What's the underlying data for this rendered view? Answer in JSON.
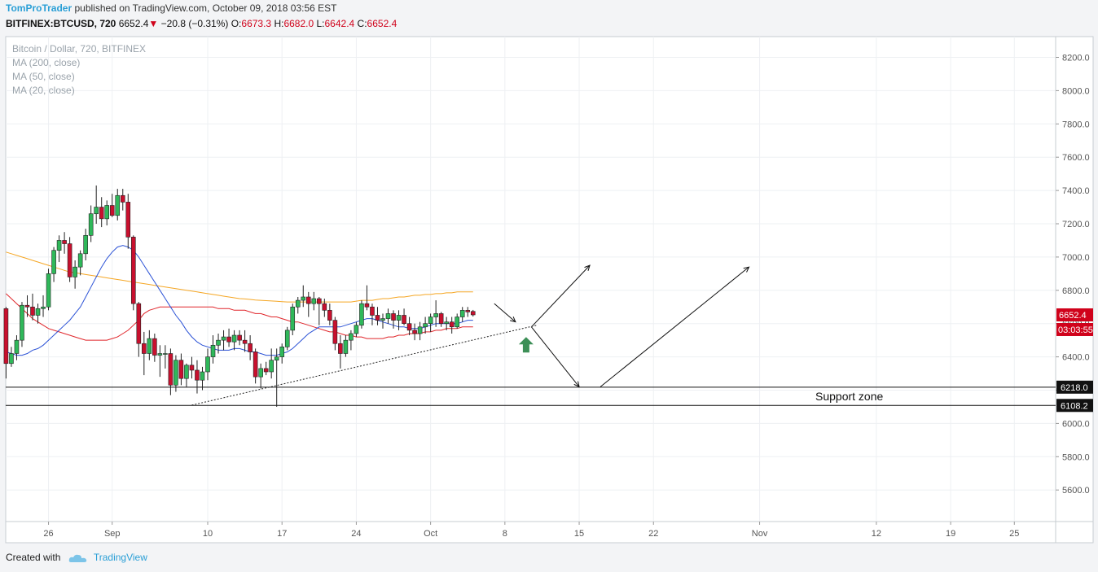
{
  "header": {
    "author": "TomProTrader",
    "published_text": "published on TradingView.com, October 09, 2018 03:56 EST",
    "symbol": "BITFINEX:BTCUSD, 720",
    "last": "6652.4",
    "change_arrow": "▼",
    "change": "−20.8 (−0.31%)",
    "o_label": "O:",
    "o_val": "6673.3",
    "h_label": "H:",
    "h_val": "6682.0",
    "l_label": "L:",
    "l_val": "6642.4",
    "c_label": "C:",
    "c_val": "6652.4"
  },
  "legend": {
    "title": "Bitcoin / Dollar, 720, BITFINEX",
    "ma200": "MA (200, close)",
    "ma50": "MA (50, close)",
    "ma20": "MA (20, close)"
  },
  "price_tags": {
    "last_price": "6652.4",
    "countdown": "03:03:55",
    "support_top": "6218.0",
    "support_bottom": "6108.2"
  },
  "annotation": {
    "support_zone": "Support zone"
  },
  "footer": {
    "created_with": "Created with",
    "brand": "TradingView"
  },
  "colors": {
    "up": "#2fb85a",
    "down": "#c8102e",
    "ma200": "#f5a623",
    "ma50": "#e0262b",
    "ma20": "#2b52d6",
    "brand": "#2a9fd6"
  },
  "chart_data": {
    "type": "candlestick",
    "title": "Bitcoin / Dollar, 720, BITFINEX",
    "interval": "720",
    "y_ticks": [
      5600,
      5800,
      6000,
      6200,
      6400,
      6600,
      6800,
      7000,
      7200,
      7400,
      7600,
      7800,
      8000,
      8200
    ],
    "ylim": [
      5420,
      8320
    ],
    "x_ticks": [
      {
        "label": "26",
        "date": "2018-08-26"
      },
      {
        "label": "Sep",
        "date": "2018-09-01"
      },
      {
        "label": "10",
        "date": "2018-09-10"
      },
      {
        "label": "17",
        "date": "2018-09-17"
      },
      {
        "label": "24",
        "date": "2018-09-24"
      },
      {
        "label": "Oct",
        "date": "2018-10-01"
      },
      {
        "label": "8",
        "date": "2018-10-08"
      },
      {
        "label": "15",
        "date": "2018-10-15"
      },
      {
        "label": "22",
        "date": "2018-10-22"
      },
      {
        "label": "Nov",
        "date": "2018-11-01"
      },
      {
        "label": "12",
        "date": "2018-11-12"
      },
      {
        "label": "19",
        "date": "2018-11-19"
      },
      {
        "label": "25",
        "date": "2018-11-25"
      }
    ],
    "candles_start": "2018-08-22 00:00",
    "candles": [
      [
        6690,
        6700,
        6270,
        6360
      ],
      [
        6360,
        6460,
        6340,
        6420
      ],
      [
        6420,
        6530,
        6380,
        6500
      ],
      [
        6500,
        6730,
        6460,
        6710
      ],
      [
        6710,
        6770,
        6640,
        6700
      ],
      [
        6700,
        6780,
        6620,
        6650
      ],
      [
        6650,
        6720,
        6600,
        6690
      ],
      [
        6690,
        6770,
        6640,
        6700
      ],
      [
        6700,
        6930,
        6680,
        6900
      ],
      [
        6900,
        7060,
        6850,
        7040
      ],
      [
        7040,
        7130,
        6970,
        7100
      ],
      [
        7100,
        7150,
        7020,
        7080
      ],
      [
        7080,
        7120,
        6850,
        6880
      ],
      [
        6880,
        6980,
        6810,
        6940
      ],
      [
        6940,
        7040,
        6890,
        7020
      ],
      [
        7020,
        7170,
        6980,
        7130
      ],
      [
        7130,
        7310,
        7090,
        7260
      ],
      [
        7260,
        7430,
        7200,
        7300
      ],
      [
        7300,
        7360,
        7180,
        7230
      ],
      [
        7230,
        7340,
        7190,
        7310
      ],
      [
        7310,
        7380,
        7240,
        7250
      ],
      [
        7250,
        7410,
        7220,
        7370
      ],
      [
        7370,
        7410,
        7280,
        7330
      ],
      [
        7330,
        7380,
        7050,
        7120
      ],
      [
        7120,
        7130,
        6680,
        6720
      ],
      [
        6720,
        6730,
        6400,
        6480
      ],
      [
        6480,
        6550,
        6290,
        6420
      ],
      [
        6420,
        6560,
        6380,
        6510
      ],
      [
        6510,
        6540,
        6370,
        6410
      ],
      [
        6410,
        6470,
        6280,
        6420
      ],
      [
        6420,
        6470,
        6330,
        6420
      ],
      [
        6420,
        6450,
        6170,
        6230
      ],
      [
        6230,
        6410,
        6190,
        6380
      ],
      [
        6380,
        6420,
        6230,
        6270
      ],
      [
        6270,
        6360,
        6220,
        6350
      ],
      [
        6350,
        6400,
        6270,
        6320
      ],
      [
        6320,
        6380,
        6180,
        6260
      ],
      [
        6260,
        6340,
        6200,
        6310
      ],
      [
        6310,
        6450,
        6260,
        6400
      ],
      [
        6400,
        6530,
        6360,
        6470
      ],
      [
        6470,
        6540,
        6420,
        6500
      ],
      [
        6500,
        6560,
        6440,
        6520
      ],
      [
        6520,
        6570,
        6460,
        6490
      ],
      [
        6490,
        6560,
        6440,
        6530
      ],
      [
        6530,
        6560,
        6470,
        6500
      ],
      [
        6500,
        6560,
        6430,
        6480
      ],
      [
        6480,
        6530,
        6380,
        6430
      ],
      [
        6430,
        6450,
        6240,
        6280
      ],
      [
        6280,
        6360,
        6210,
        6330
      ],
      [
        6330,
        6370,
        6290,
        6310
      ],
      [
        6310,
        6450,
        6270,
        6380
      ],
      [
        6380,
        6450,
        6100,
        6400
      ],
      [
        6400,
        6480,
        6360,
        6460
      ],
      [
        6460,
        6580,
        6440,
        6560
      ],
      [
        6560,
        6720,
        6530,
        6700
      ],
      [
        6700,
        6760,
        6660,
        6740
      ],
      [
        6740,
        6830,
        6700,
        6760
      ],
      [
        6760,
        6790,
        6640,
        6720
      ],
      [
        6720,
        6790,
        6680,
        6750
      ],
      [
        6750,
        6760,
        6590,
        6720
      ],
      [
        6720,
        6750,
        6640,
        6680
      ],
      [
        6680,
        6720,
        6590,
        6620
      ],
      [
        6620,
        6640,
        6440,
        6480
      ],
      [
        6480,
        6530,
        6330,
        6420
      ],
      [
        6420,
        6530,
        6400,
        6500
      ],
      [
        6500,
        6560,
        6440,
        6540
      ],
      [
        6540,
        6610,
        6520,
        6590
      ],
      [
        6590,
        6740,
        6570,
        6720
      ],
      [
        6720,
        6830,
        6680,
        6700
      ],
      [
        6700,
        6720,
        6590,
        6650
      ],
      [
        6650,
        6700,
        6590,
        6620
      ],
      [
        6620,
        6660,
        6570,
        6630
      ],
      [
        6630,
        6690,
        6600,
        6660
      ],
      [
        6660,
        6680,
        6570,
        6620
      ],
      [
        6620,
        6680,
        6560,
        6650
      ],
      [
        6650,
        6690,
        6590,
        6600
      ],
      [
        6600,
        6640,
        6530,
        6560
      ],
      [
        6560,
        6600,
        6500,
        6540
      ],
      [
        6540,
        6610,
        6500,
        6580
      ],
      [
        6580,
        6640,
        6540,
        6600
      ],
      [
        6600,
        6660,
        6550,
        6640
      ],
      [
        6640,
        6740,
        6580,
        6660
      ],
      [
        6660,
        6670,
        6580,
        6600
      ],
      [
        6600,
        6640,
        6560,
        6610
      ],
      [
        6610,
        6640,
        6540,
        6580
      ],
      [
        6580,
        6660,
        6570,
        6640
      ],
      [
        6640,
        6700,
        6610,
        6680
      ],
      [
        6680,
        6700,
        6640,
        6670
      ],
      [
        6673.3,
        6682.0,
        6642.4,
        6652.4
      ]
    ],
    "ma20": [
      6430,
      6420,
      6410,
      6410,
      6420,
      6440,
      6450,
      6470,
      6500,
      6530,
      6560,
      6590,
      6620,
      6660,
      6700,
      6760,
      6820,
      6880,
      6940,
      6990,
      7030,
      7060,
      7070,
      7060,
      7040,
      7000,
      6950,
      6900,
      6850,
      6800,
      6750,
      6700,
      6650,
      6610,
      6560,
      6520,
      6490,
      6470,
      6460,
      6450,
      6440,
      6440,
      6440,
      6450,
      6450,
      6440,
      6430,
      6430,
      6420,
      6410,
      6410,
      6410,
      6420,
      6430,
      6450,
      6480,
      6510,
      6540,
      6560,
      6580,
      6580,
      6580,
      6580,
      6580,
      6590,
      6600,
      6610,
      6620,
      6630,
      6630,
      6620,
      6610,
      6600,
      6590,
      6580,
      6580,
      6570,
      6570,
      6570,
      6580,
      6590,
      6600,
      6600,
      6600,
      6600,
      6600,
      6610,
      6620,
      6620
    ],
    "ma50": [
      6780,
      6750,
      6720,
      6690,
      6660,
      6630,
      6610,
      6590,
      6570,
      6560,
      6550,
      6540,
      6530,
      6520,
      6510,
      6500,
      6500,
      6500,
      6500,
      6500,
      6510,
      6520,
      6540,
      6560,
      6590,
      6620,
      6660,
      6680,
      6690,
      6700,
      6700,
      6700,
      6700,
      6700,
      6700,
      6700,
      6700,
      6700,
      6700,
      6700,
      6690,
      6690,
      6690,
      6680,
      6680,
      6680,
      6670,
      6660,
      6660,
      6650,
      6640,
      6640,
      6630,
      6620,
      6610,
      6610,
      6600,
      6590,
      6580,
      6570,
      6560,
      6550,
      6550,
      6540,
      6530,
      6530,
      6520,
      6520,
      6510,
      6510,
      6510,
      6510,
      6520,
      6520,
      6530,
      6530,
      6540,
      6540,
      6540,
      6550,
      6550,
      6560,
      6560,
      6570,
      6570,
      6570,
      6580,
      6580,
      6580
    ],
    "ma200": [
      7030,
      7020,
      7010,
      7000,
      6990,
      6980,
      6970,
      6960,
      6950,
      6940,
      6930,
      6920,
      6910,
      6905,
      6900,
      6895,
      6890,
      6885,
      6880,
      6875,
      6870,
      6865,
      6860,
      6855,
      6850,
      6845,
      6840,
      6835,
      6830,
      6825,
      6820,
      6815,
      6810,
      6805,
      6800,
      6795,
      6790,
      6785,
      6780,
      6775,
      6770,
      6765,
      6760,
      6755,
      6750,
      6748,
      6745,
      6742,
      6740,
      6738,
      6736,
      6734,
      6732,
      6730,
      6730,
      6730,
      6730,
      6730,
      6730,
      6730,
      6730,
      6730,
      6730,
      6730,
      6730,
      6730,
      6735,
      6740,
      6740,
      6740,
      6745,
      6750,
      6750,
      6755,
      6760,
      6760,
      6765,
      6770,
      6770,
      6775,
      6775,
      6780,
      6780,
      6785,
      6785,
      6790,
      6790,
      6790,
      6790
    ],
    "support_zone": {
      "top": 6218.0,
      "bottom": 6108.2
    },
    "trendline": {
      "from": {
        "date": "2018-09-08 12:00",
        "price": 6110
      },
      "to": {
        "date": "2018-10-11 00:00",
        "price": 6590
      }
    },
    "projection_arrows": [
      {
        "from": {
          "date": "2018-10-07 00:00",
          "price": 6720
        },
        "to": {
          "date": "2018-10-09 00:00",
          "price": 6610
        }
      },
      {
        "from": {
          "date": "2018-10-10 12:00",
          "price": 6580
        },
        "to": {
          "date": "2018-10-16 00:00",
          "price": 6950
        }
      },
      {
        "from": {
          "date": "2018-10-10 12:00",
          "price": 6580
        },
        "to": {
          "date": "2018-10-15 00:00",
          "price": 6220
        }
      },
      {
        "from": {
          "date": "2018-10-17 00:00",
          "price": 6220
        },
        "to": {
          "date": "2018-10-31 00:00",
          "price": 6940
        }
      }
    ],
    "marker": {
      "type": "up-arrow",
      "date": "2018-10-10 00:00",
      "price": 6470,
      "color": "#3c8f57"
    },
    "grid": true
  }
}
